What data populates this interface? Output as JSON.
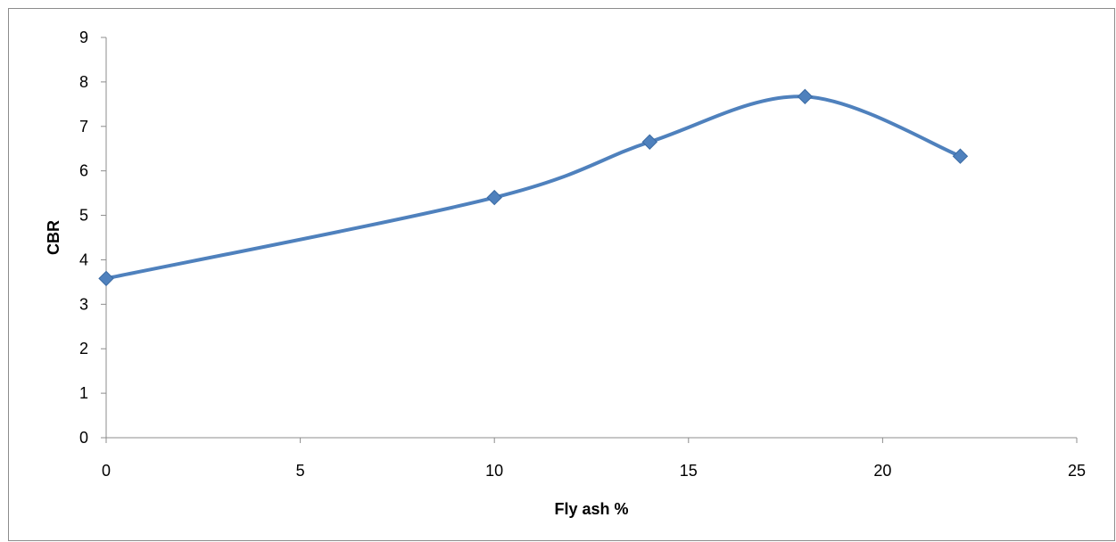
{
  "chart_data": {
    "type": "line",
    "title": "",
    "xlabel": "Fly ash %",
    "ylabel": "CBR",
    "xlim": [
      0,
      25
    ],
    "ylim": [
      0,
      9
    ],
    "x_ticks": [
      0,
      5,
      10,
      15,
      20,
      25
    ],
    "y_ticks": [
      0,
      1,
      2,
      3,
      4,
      5,
      6,
      7,
      8,
      9
    ],
    "grid": false,
    "legend": "none",
    "smooth": true,
    "series": [
      {
        "color": "#4f81bd",
        "marker": "diamond",
        "points": [
          {
            "x": 0,
            "y": 3.58
          },
          {
            "x": 10,
            "y": 5.4
          },
          {
            "x": 14,
            "y": 6.65
          },
          {
            "x": 18,
            "y": 7.67
          },
          {
            "x": 22,
            "y": 6.33
          }
        ]
      }
    ]
  }
}
